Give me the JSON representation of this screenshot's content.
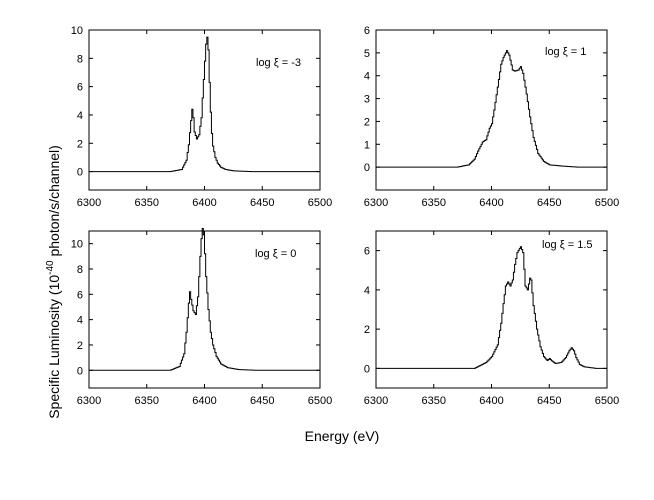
{
  "figure": {
    "ylabel_main": "Specific Luminosity (10",
    "ylabel_exp": "-40",
    "ylabel_tail": " photon/s/channel)",
    "xlabel": "Energy (eV)"
  },
  "chart_data": [
    {
      "type": "line",
      "annotation": "log ξ = -3",
      "xlim": [
        6300,
        6500
      ],
      "ylim": [
        -1.3,
        10
      ],
      "xticks": [
        6300,
        6350,
        6400,
        6450,
        6500
      ],
      "yticks": [
        0,
        2,
        4,
        6,
        8,
        10
      ],
      "x": [
        6300,
        6370,
        6380,
        6384,
        6386,
        6388,
        6389,
        6390,
        6391,
        6393,
        6395,
        6397,
        6398,
        6400,
        6401,
        6402,
        6403,
        6404,
        6405,
        6406,
        6407,
        6409,
        6411,
        6414,
        6418,
        6425,
        6440,
        6500
      ],
      "y": [
        0,
        0,
        0.15,
        0.8,
        1.9,
        3.6,
        4.4,
        3.8,
        2.8,
        2.3,
        2.6,
        3.8,
        5.2,
        7.8,
        9.0,
        9.5,
        8.6,
        6.3,
        4.2,
        2.7,
        1.8,
        1.0,
        0.6,
        0.3,
        0.15,
        0.05,
        0,
        0
      ]
    },
    {
      "type": "line",
      "annotation": "log ξ = 1",
      "xlim": [
        6300,
        6500
      ],
      "ylim": [
        -1,
        6
      ],
      "xticks": [
        6300,
        6350,
        6400,
        6450,
        6500
      ],
      "yticks": [
        0,
        1,
        2,
        3,
        4,
        5,
        6
      ],
      "x": [
        6300,
        6370,
        6380,
        6385,
        6388,
        6392,
        6395,
        6398,
        6400,
        6402,
        6405,
        6408,
        6410,
        6413,
        6415,
        6418,
        6420,
        6423,
        6425,
        6427,
        6430,
        6433,
        6436,
        6440,
        6445,
        6450,
        6460,
        6475,
        6500
      ],
      "y": [
        0,
        0,
        0.1,
        0.35,
        0.7,
        1.1,
        1.2,
        1.7,
        1.9,
        2.5,
        3.5,
        4.5,
        4.8,
        5.1,
        4.9,
        4.25,
        4.2,
        4.25,
        4.4,
        4.1,
        3.2,
        2.2,
        1.3,
        0.6,
        0.25,
        0.1,
        0.05,
        0,
        0
      ]
    },
    {
      "type": "line",
      "annotation": "log ξ = 0",
      "xlim": [
        6300,
        6500
      ],
      "ylim": [
        -1.4,
        11
      ],
      "xticks": [
        6300,
        6350,
        6400,
        6450,
        6500
      ],
      "yticks": [
        0,
        2,
        4,
        6,
        8,
        10
      ],
      "x": [
        6300,
        6370,
        6378,
        6382,
        6384,
        6386,
        6387,
        6388,
        6390,
        6392,
        6394,
        6395,
        6396,
        6397,
        6398,
        6399,
        6400,
        6401,
        6403,
        6405,
        6407,
        6410,
        6414,
        6420,
        6430,
        6445,
        6500
      ],
      "y": [
        0,
        0,
        0.3,
        1.3,
        3.0,
        5.3,
        6.2,
        5.6,
        4.7,
        4.4,
        5.8,
        7.4,
        9.0,
        10.4,
        11.2,
        10.7,
        9.2,
        7.4,
        4.8,
        3.0,
        2.0,
        1.1,
        0.5,
        0.2,
        0.05,
        0,
        0
      ]
    },
    {
      "type": "line",
      "annotation": "log ξ = 1.5",
      "xlim": [
        6300,
        6500
      ],
      "ylim": [
        -1,
        7
      ],
      "xticks": [
        6300,
        6350,
        6400,
        6450,
        6500
      ],
      "yticks": [
        0,
        2,
        4,
        6
      ],
      "x": [
        6300,
        6385,
        6395,
        6400,
        6405,
        6408,
        6410,
        6412,
        6414,
        6416,
        6418,
        6420,
        6422,
        6424,
        6425,
        6427,
        6429,
        6431,
        6433,
        6434,
        6436,
        6439,
        6442,
        6445,
        6448,
        6450,
        6452,
        6455,
        6460,
        6464,
        6467,
        6469,
        6471,
        6473,
        6476,
        6480,
        6490,
        6500
      ],
      "y": [
        0,
        0,
        0.3,
        0.6,
        1.2,
        2.3,
        3.3,
        4.2,
        4.4,
        4.2,
        4.5,
        5.3,
        5.9,
        6.1,
        6.2,
        5.9,
        4.2,
        4.0,
        4.6,
        4.5,
        3.2,
        2.0,
        1.1,
        0.6,
        0.4,
        0.5,
        0.38,
        0.25,
        0.3,
        0.55,
        0.9,
        1.05,
        0.9,
        0.55,
        0.2,
        0.08,
        0,
        0
      ]
    }
  ]
}
